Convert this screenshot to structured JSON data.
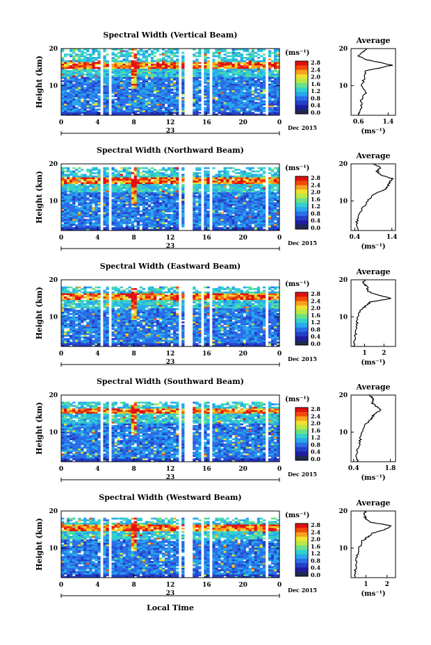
{
  "figure": {
    "ylabel": "Height (km)",
    "xlabel": "Local Time",
    "date_label": "Dec 2015",
    "colorbar_unit": "(ms⁻¹)",
    "colorbar_ticks": [
      "2.8",
      "2.4",
      "2.0",
      "1.6",
      "1.2",
      "0.8",
      "0.4",
      "0.0"
    ],
    "colorbar_colors": [
      "#e01010",
      "#f24a0a",
      "#f7a21c",
      "#f0e030",
      "#b8e848",
      "#6ae08a",
      "#34d0cc",
      "#27a8ec",
      "#2a6ee8",
      "#2440c8",
      "#1e1ea0",
      "#202a50"
    ],
    "x_ticks": [
      "0",
      "4",
      "8",
      "12",
      "16",
      "20",
      "0"
    ],
    "y_ticks": [
      "20",
      "10"
    ],
    "day_label": "23",
    "avg_title": "Average",
    "avg_unit": "(ms⁻¹)",
    "gap_hours": [
      [
        4.3,
        4.65
      ],
      [
        5.3,
        5.65
      ],
      [
        12.8,
        13.3
      ],
      [
        13.6,
        14.6
      ],
      [
        15.3,
        15.6
      ],
      [
        16.2,
        16.6
      ],
      [
        22.6,
        22.9
      ]
    ]
  },
  "chart_data": [
    {
      "type": "heatmap",
      "title": "Spectral Width (Vertical Beam)",
      "xlabel": "",
      "ylabel": "Height (km)",
      "x_range_hours": [
        0,
        24
      ],
      "y_range_km": [
        2,
        20
      ],
      "colorbar_range": [
        0.0,
        3.0
      ],
      "average_profile": {
        "x_ticks": [
          "0.6",
          "1.4"
        ],
        "xlim": [
          0.4,
          1.6
        ],
        "height_km": [
          2,
          4,
          6,
          8,
          10,
          12,
          14,
          15.5,
          16,
          17,
          18,
          19,
          20
        ],
        "width": [
          0.6,
          0.7,
          0.65,
          0.8,
          0.7,
          0.75,
          0.8,
          1.5,
          1.3,
          0.8,
          0.6,
          0.7,
          0.8
        ]
      }
    },
    {
      "type": "heatmap",
      "title": "Spectral Width (Northward Beam)",
      "xlabel": "",
      "ylabel": "Height (km)",
      "x_range_hours": [
        0,
        24
      ],
      "y_range_km": [
        2,
        20
      ],
      "colorbar_range": [
        0.0,
        3.0
      ],
      "average_profile": {
        "x_ticks": [
          "0.4",
          "1.4"
        ],
        "xlim": [
          0.3,
          1.5
        ],
        "height_km": [
          2,
          4,
          6,
          8,
          10,
          12,
          13,
          14,
          15,
          16,
          17,
          18,
          19,
          20
        ],
        "width": [
          0.5,
          0.45,
          0.5,
          0.6,
          0.75,
          0.95,
          1.2,
          1.3,
          1.35,
          1.4,
          1.1,
          1.0,
          1.1,
          0.9
        ]
      }
    },
    {
      "type": "heatmap",
      "title": "Spectral Width (Eastward Beam)",
      "xlabel": "",
      "ylabel": "Height (km)",
      "x_range_hours": [
        0,
        24
      ],
      "y_range_km": [
        2,
        20
      ],
      "colorbar_range": [
        0.0,
        3.0
      ],
      "average_profile": {
        "x_ticks": [
          "1",
          "2"
        ],
        "xlim": [
          0.3,
          2.6
        ],
        "height_km": [
          2,
          4,
          6,
          8,
          10,
          12,
          13,
          14,
          15,
          16,
          17,
          18,
          19,
          20
        ],
        "width": [
          0.45,
          0.5,
          0.55,
          0.6,
          0.65,
          0.8,
          1.1,
          1.3,
          2.4,
          1.6,
          1.1,
          1.2,
          0.9,
          1.0
        ]
      }
    },
    {
      "type": "heatmap",
      "title": "Spectral Width (Southward Beam)",
      "xlabel": "",
      "ylabel": "Height (km)",
      "x_range_hours": [
        0,
        24
      ],
      "y_range_km": [
        2,
        20
      ],
      "colorbar_range": [
        0.0,
        3.0
      ],
      "average_profile": {
        "x_ticks": [
          "0.4",
          "1.8"
        ],
        "xlim": [
          0.3,
          2.0
        ],
        "height_km": [
          2,
          4,
          6,
          8,
          10,
          12,
          13,
          14,
          15,
          16,
          17,
          18,
          19,
          20
        ],
        "width": [
          0.55,
          0.5,
          0.6,
          0.65,
          0.7,
          0.85,
          1.0,
          1.1,
          1.2,
          1.45,
          1.25,
          1.1,
          1.15,
          1.0
        ]
      }
    },
    {
      "type": "heatmap",
      "title": "Spectral Width (Westward Beam)",
      "xlabel": "",
      "ylabel": "Height (km)",
      "x_range_hours": [
        0,
        24
      ],
      "y_range_km": [
        2,
        20
      ],
      "colorbar_range": [
        0.0,
        3.0
      ],
      "average_profile": {
        "x_ticks": [
          "1",
          "2"
        ],
        "xlim": [
          0.3,
          2.4
        ],
        "height_km": [
          2,
          4,
          6,
          8,
          10,
          12,
          13,
          14,
          15,
          16,
          17,
          18,
          19,
          20
        ],
        "width": [
          0.45,
          0.5,
          0.55,
          0.6,
          0.7,
          0.85,
          1.1,
          1.3,
          1.9,
          2.2,
          1.2,
          1.0,
          0.9,
          1.0
        ]
      }
    }
  ]
}
